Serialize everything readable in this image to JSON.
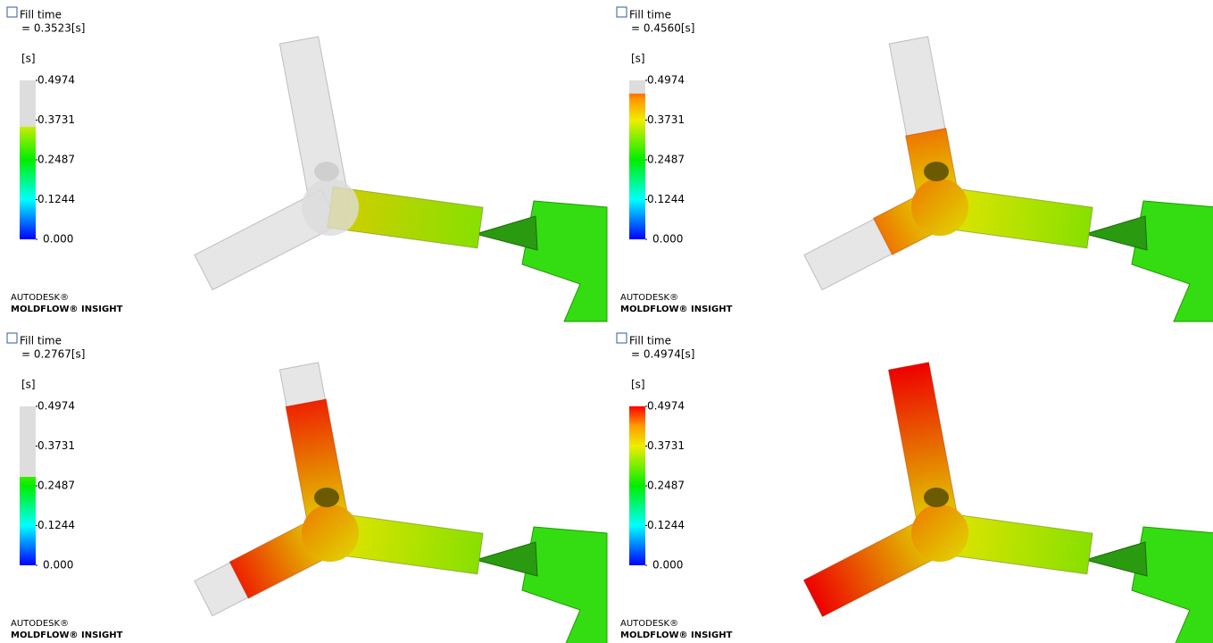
{
  "panels": [
    {
      "title": "Fill time",
      "time": {
        "value": 0.3523,
        "label": "= 0.3523[s]"
      },
      "unit": "[s]",
      "ticks": [
        0.4974,
        0.3731,
        0.2487,
        0.1244,
        {
          "value": 0,
          "label": "0.000"
        }
      ],
      "logo": [
        "AUTODESK®",
        "MOLDFLOW® INSIGHT"
      ]
    },
    {
      "title": "Fill time",
      "time": {
        "value": 0.456,
        "label": "= 0.4560[s]"
      },
      "unit": "[s]",
      "ticks": [
        0.4974,
        0.3731,
        0.2487,
        0.1244,
        {
          "value": 0,
          "label": "0.000"
        }
      ],
      "logo": [
        "AUTODESK®",
        "MOLDFLOW® INSIGHT"
      ]
    },
    {
      "title": "Fill time",
      "time": {
        "value": 0.2767,
        "label": "= 0.2767[s]"
      },
      "unit": "[s]",
      "ticks": [
        0.4974,
        0.3731,
        0.2487,
        0.1244,
        {
          "value": 0,
          "label": "0.000"
        }
      ],
      "logo": [
        "AUTODESK®",
        "MOLDFLOW® INSIGHT"
      ]
    },
    {
      "title": "Fill time",
      "time": {
        "value": 0.4974,
        "label": "= 0.4974[s]"
      },
      "unit": "[s]",
      "ticks": [
        0.4974,
        0.3731,
        0.2487,
        0.1244,
        {
          "value": 0,
          "label": "0.000"
        }
      ],
      "logo": [
        "AUTODESK®",
        "MOLDFLOW® INSIGHT"
      ]
    }
  ]
}
